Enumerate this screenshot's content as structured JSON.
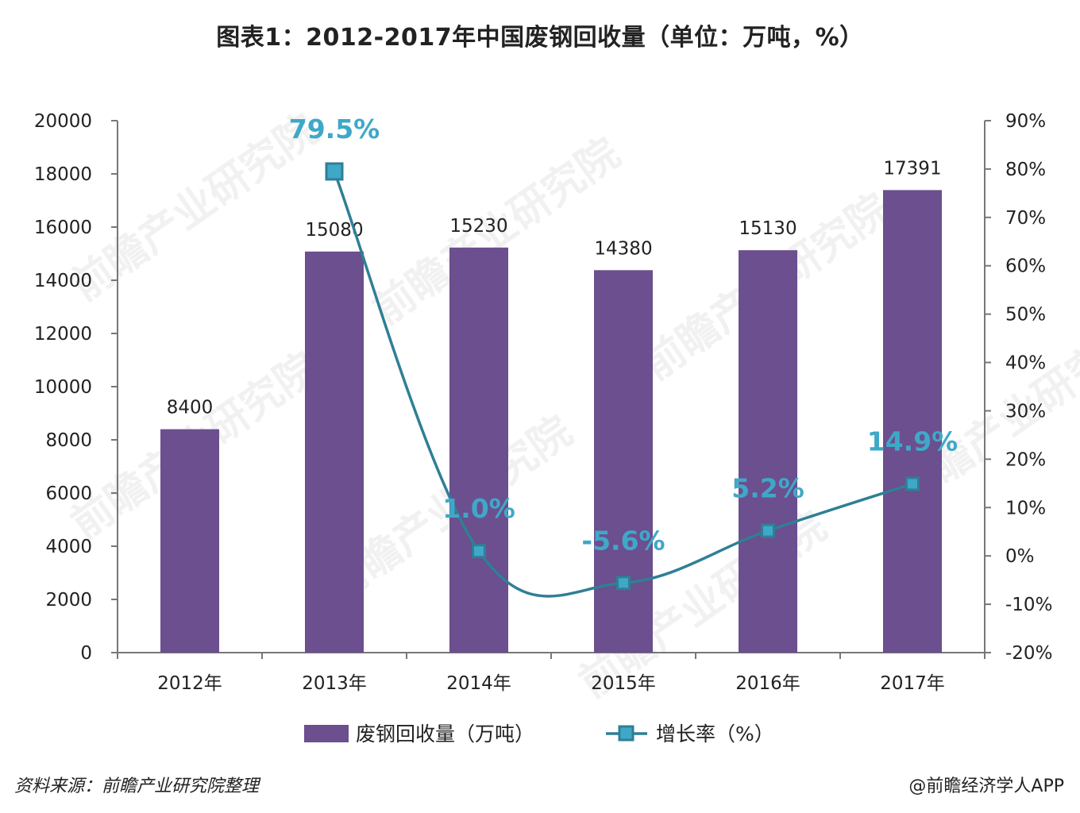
{
  "title": "图表1：2012-2017年中国废钢回收量（单位：万吨，%）",
  "colors": {
    "bar": "#6b4f8e",
    "line": "#2f7f95",
    "marker_fill": "#3fa8c8",
    "rate_label": "#3fa8c8",
    "axis": "#777777"
  },
  "chart_data": {
    "type": "bar+line",
    "categories": [
      "2012年",
      "2013年",
      "2014年",
      "2015年",
      "2016年",
      "2017年"
    ],
    "series": [
      {
        "name": "废钢回收量（万吨）",
        "type": "bar",
        "axis": "left",
        "values": [
          8400,
          15080,
          15230,
          14380,
          15130,
          17391
        ],
        "labels": [
          "8400",
          "15080",
          "15230",
          "14380",
          "15130",
          "17391"
        ]
      },
      {
        "name": "增长率（%）",
        "type": "line",
        "axis": "right",
        "values": [
          null,
          79.5,
          1.0,
          -5.6,
          5.2,
          14.9
        ],
        "labels": [
          "",
          "79.5%",
          "1.0%",
          "-5.6%",
          "5.2%",
          "14.9%"
        ]
      }
    ],
    "y_left": {
      "range": [
        0,
        20000
      ],
      "ticks": [
        "0",
        "2000",
        "4000",
        "6000",
        "8000",
        "10000",
        "12000",
        "14000",
        "16000",
        "18000",
        "20000"
      ]
    },
    "y_right": {
      "range": [
        -20,
        90
      ],
      "ticks": [
        "-20%",
        "-10%",
        "0%",
        "10%",
        "20%",
        "30%",
        "40%",
        "50%",
        "60%",
        "70%",
        "80%",
        "90%"
      ]
    },
    "legend": [
      "废钢回收量（万吨）",
      "增长率（%）"
    ],
    "legend_position": "bottom"
  },
  "footer": {
    "source": "资料来源：前瞻产业研究院整理",
    "brand": "@前瞻经济学人APP"
  }
}
